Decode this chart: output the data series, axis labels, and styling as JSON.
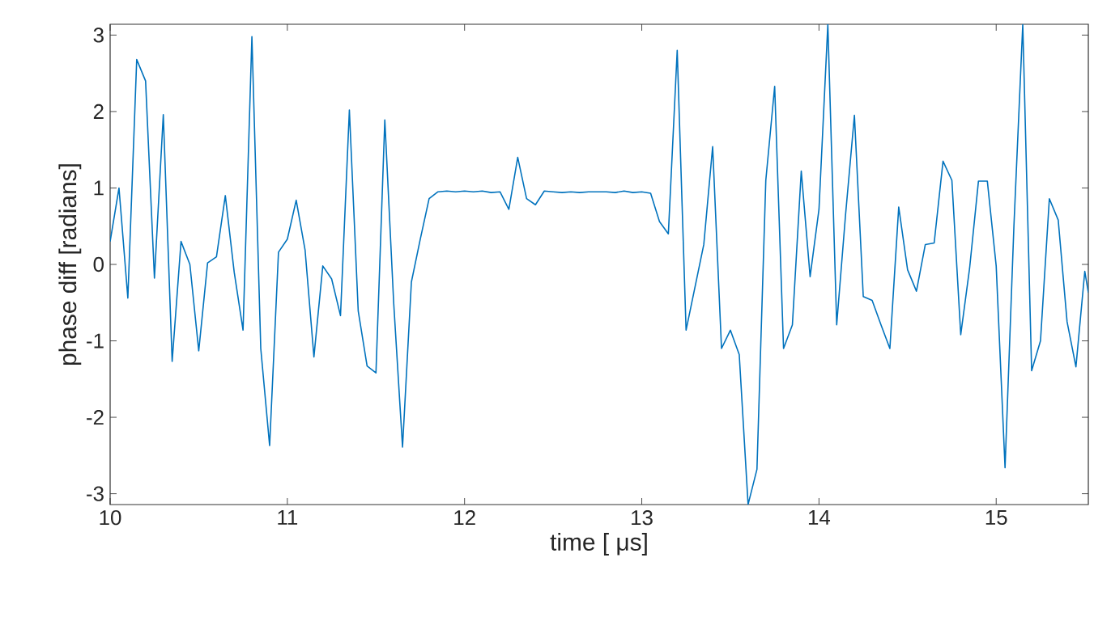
{
  "chart_data": {
    "type": "line",
    "xlabel": "time [  μs]",
    "ylabel": "phase diff [radians]",
    "x": [
      10.0,
      10.05,
      10.1,
      10.15,
      10.2,
      10.25,
      10.3,
      10.35,
      10.4,
      10.45,
      10.5,
      10.55,
      10.6,
      10.65,
      10.7,
      10.75,
      10.8,
      10.85,
      10.9,
      10.95,
      11.0,
      11.05,
      11.1,
      11.15,
      11.2,
      11.25,
      11.3,
      11.35,
      11.4,
      11.45,
      11.5,
      11.55,
      11.6,
      11.65,
      11.7,
      11.75,
      11.8,
      11.85,
      11.9,
      11.95,
      12.0,
      12.05,
      12.1,
      12.15,
      12.2,
      12.25,
      12.3,
      12.35,
      12.4,
      12.45,
      12.5,
      12.55,
      12.6,
      12.65,
      12.7,
      12.75,
      12.8,
      12.85,
      12.9,
      12.95,
      13.0,
      13.05,
      13.1,
      13.15,
      13.2,
      13.25,
      13.3,
      13.35,
      13.4,
      13.45,
      13.5,
      13.55,
      13.6,
      13.65,
      13.7,
      13.75,
      13.8,
      13.85,
      13.9,
      13.95,
      14.0,
      14.05,
      14.1,
      14.15,
      14.2,
      14.25,
      14.3,
      14.35,
      14.4,
      14.45,
      14.5,
      14.55,
      14.6,
      14.65,
      14.7,
      14.75,
      14.8,
      14.85,
      14.9,
      14.95,
      15.0,
      15.05,
      15.1,
      15.15,
      15.2,
      15.25,
      15.3,
      15.35,
      15.4,
      15.45,
      15.5,
      15.52
    ],
    "series": [
      {
        "color": "#0072bd",
        "values": [
          0.3,
          1.0,
          -0.44,
          2.68,
          2.4,
          -0.18,
          1.96,
          -1.27,
          0.3,
          0.0,
          -1.13,
          0.02,
          0.1,
          0.9,
          -0.1,
          -0.86,
          2.98,
          -1.1,
          -2.37,
          0.16,
          0.33,
          0.84,
          0.19,
          -1.21,
          -0.02,
          -0.19,
          -0.67,
          2.02,
          -0.61,
          -1.33,
          -1.42,
          1.89,
          -0.5,
          -2.39,
          -0.23,
          0.33,
          0.86,
          0.95,
          0.96,
          0.95,
          0.96,
          0.95,
          0.96,
          0.94,
          0.95,
          0.72,
          1.4,
          0.86,
          0.78,
          0.96,
          0.95,
          0.94,
          0.95,
          0.94,
          0.95,
          0.95,
          0.95,
          0.94,
          0.96,
          0.94,
          0.95,
          0.93,
          0.56,
          0.4,
          2.8,
          -0.86,
          -0.3,
          0.26,
          1.54,
          -1.1,
          -0.86,
          -1.18,
          -3.14,
          -2.68,
          1.1,
          2.33,
          -1.1,
          -0.79,
          1.22,
          -0.16,
          0.72,
          3.14,
          -0.79,
          0.65,
          1.95,
          -0.42,
          -0.47,
          -0.79,
          -1.1,
          0.75,
          -0.07,
          -0.35,
          0.26,
          0.28,
          1.35,
          1.1,
          -0.92,
          -0.05,
          1.09,
          1.09,
          -0.02,
          -2.66,
          0.5,
          3.14,
          -1.39,
          -1.0,
          0.86,
          0.58,
          -0.75,
          -1.34,
          -0.09,
          -0.37
        ]
      }
    ],
    "xlim": [
      10,
      15.52
    ],
    "ylim": [
      -3.1416,
      3.1416
    ],
    "xticks": [
      10,
      11,
      12,
      13,
      14,
      15
    ],
    "yticks": [
      -3,
      -2,
      -1,
      0,
      1,
      2,
      3
    ],
    "grid": false,
    "marker": "none",
    "line_style": "solid"
  }
}
